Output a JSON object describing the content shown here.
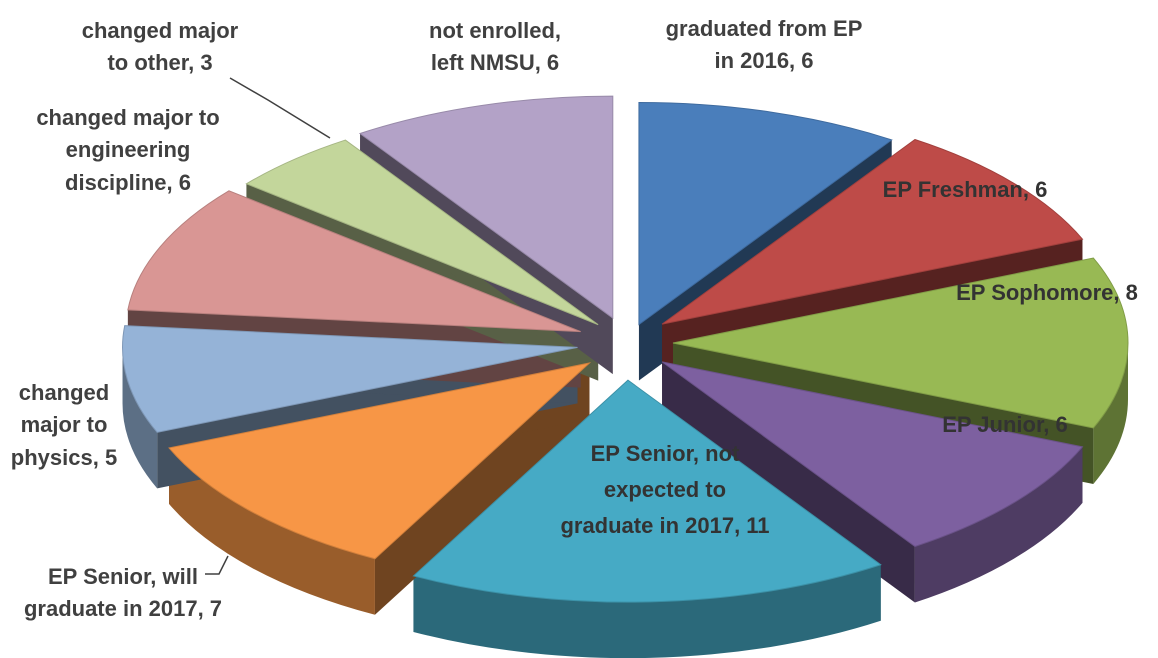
{
  "chart_data": {
    "type": "pie",
    "style": "exploded-3d",
    "title": "",
    "slices": [
      {
        "category": "graduated from EP in 2016",
        "value": 6,
        "label_lines": [
          "graduated from EP",
          "in 2016, 6"
        ],
        "color": "#4a7ebb",
        "label_color": "#404040"
      },
      {
        "category": "EP Freshman",
        "value": 6,
        "label_lines": [
          "EP Freshman, 6"
        ],
        "color": "#be4b48",
        "label_color": "#333333"
      },
      {
        "category": "EP Sophomore",
        "value": 8,
        "label_lines": [
          "EP Sophomore, 8"
        ],
        "color": "#98b954",
        "label_color": "#333333"
      },
      {
        "category": "EP Junior",
        "value": 6,
        "label_lines": [
          "EP Junior, 6"
        ],
        "color": "#7d60a0",
        "label_color": "#333333"
      },
      {
        "category": "EP Senior, not expected to graduate in 2017",
        "value": 11,
        "label_lines": [
          "EP Senior, not",
          "expected to",
          "graduate in 2017, 11"
        ],
        "color": "#46aac5",
        "label_color": "#333333"
      },
      {
        "category": "EP Senior, will graduate in 2017",
        "value": 7,
        "label_lines": [
          "EP Senior, will",
          "graduate in 2017, 7"
        ],
        "color": "#f79646",
        "label_color": "#404040"
      },
      {
        "category": "changed major to physics",
        "value": 5,
        "label_lines": [
          "changed",
          "major to",
          "physics, 5"
        ],
        "color": "#95b3d7",
        "label_color": "#404040"
      },
      {
        "category": "changed major to engineering discipline",
        "value": 6,
        "label_lines": [
          "changed major to",
          "engineering",
          "discipline, 6"
        ],
        "color": "#d99694",
        "label_color": "#404040"
      },
      {
        "category": "changed major to other",
        "value": 3,
        "label_lines": [
          "changed major",
          "to other, 3"
        ],
        "color": "#c3d69b",
        "label_color": "#404040"
      },
      {
        "category": "not enrolled, left NMSU",
        "value": 6,
        "label_lines": [
          "not enrolled,",
          "left NMSU, 6"
        ],
        "color": "#b3a2c7",
        "label_color": "#404040"
      }
    ]
  }
}
